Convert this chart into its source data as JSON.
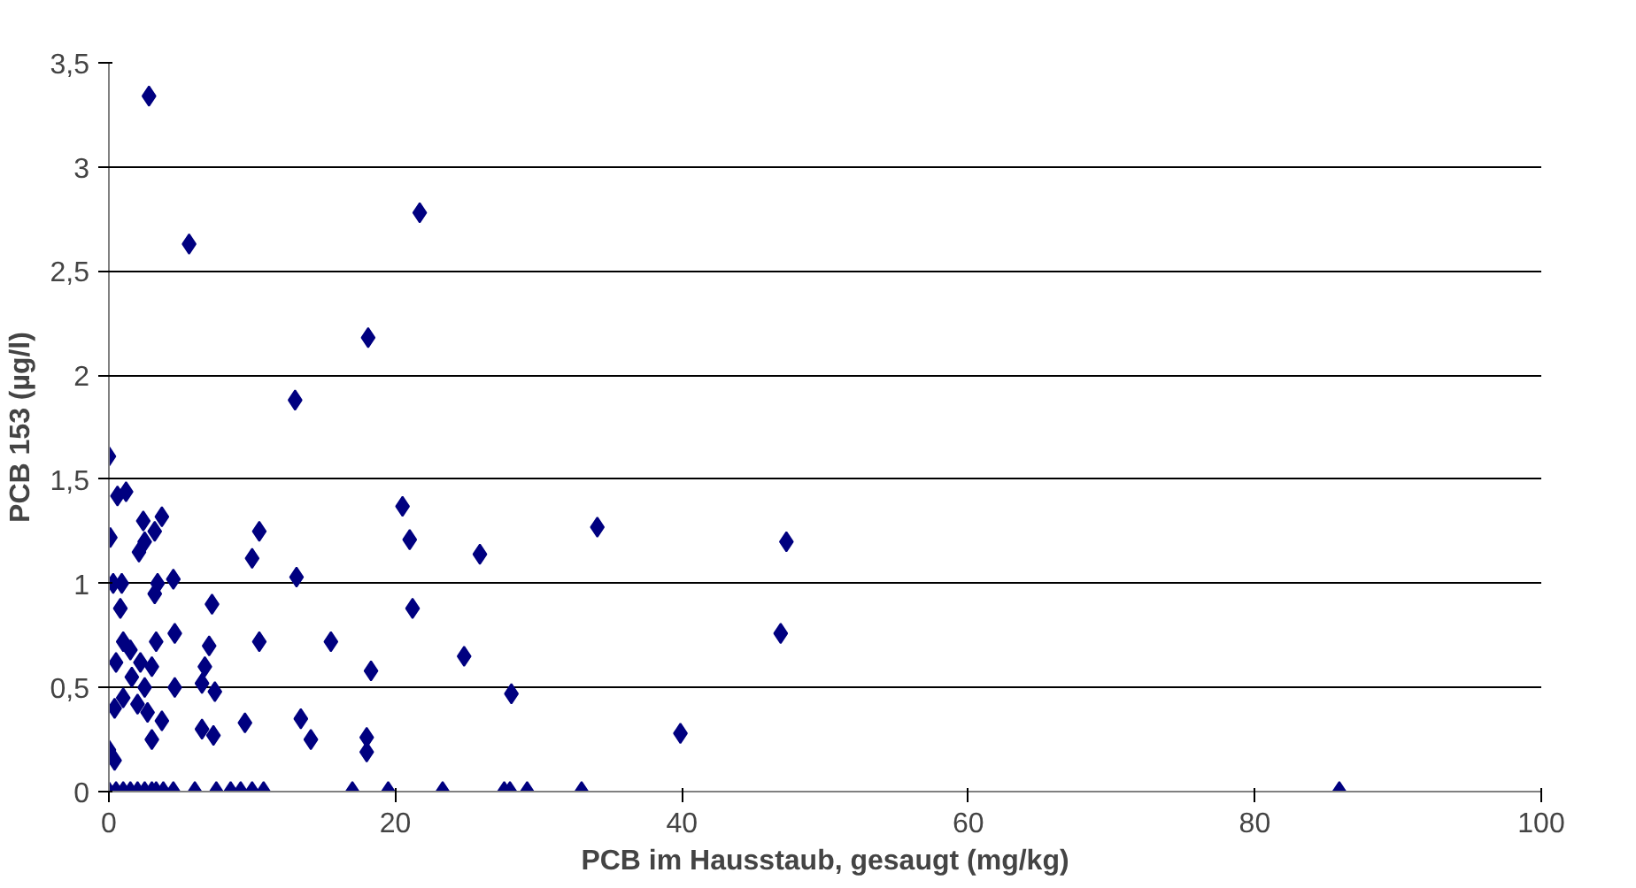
{
  "chart_data": {
    "type": "scatter",
    "xlabel": "PCB im Hausstaub, gesaugt (mg/kg)",
    "ylabel": "PCB 153 (µg/l)",
    "xlim": [
      0,
      100
    ],
    "xticks": [
      0,
      20,
      40,
      60,
      80,
      100
    ],
    "ylim": [
      0,
      3.5
    ],
    "yticks": [
      0,
      {
        "value": 0.5,
        "label": "0,5"
      },
      1,
      {
        "value": 1.5,
        "label": "1,5"
      },
      2,
      {
        "value": 2.5,
        "label": "2,5"
      },
      3,
      {
        "value": 3.5,
        "label": "3,5"
      }
    ],
    "grid": "y",
    "marker": "diamond",
    "series": [
      {
        "color": "#000080",
        "x": [
          2.8,
          5.6,
          21.7,
          18.1,
          13.0,
          0,
          0.1,
          0.6,
          1.2,
          0.3,
          0.9,
          2.4,
          2.1,
          2.5,
          3.2,
          3.7,
          3.4,
          3.2,
          4.5,
          10.0,
          10.5,
          13.1,
          20.5,
          21.0,
          21.2,
          25.9,
          34.1,
          47.3,
          46.9,
          15.5,
          10.5,
          7.2,
          18.3,
          24.8,
          28.1,
          39.9,
          13.4,
          14.1,
          9.5,
          18.0,
          18.0,
          6.7,
          7.0,
          6.5,
          7.4,
          6.5,
          7.3,
          4.6,
          3.3,
          3.0,
          2.5,
          1.5,
          1.0,
          0.5,
          0.4,
          0.0,
          0.4,
          1.6,
          2.2,
          2.0,
          2.7,
          3.0,
          3.7,
          4.6,
          1.0,
          0.8,
          0,
          0.5,
          1,
          1.5,
          2,
          2.5,
          3,
          3.3,
          3.8,
          4.5,
          6,
          7.5,
          8.5,
          9.2,
          10,
          10.8,
          17,
          19.5,
          23.3,
          27.6,
          28,
          29.2,
          33,
          85.9
        ],
        "values": [
          3.34,
          2.63,
          2.78,
          2.18,
          1.88,
          1.61,
          1.22,
          1.42,
          1.44,
          1.0,
          1.0,
          1.3,
          1.15,
          1.2,
          1.25,
          1.32,
          1.0,
          0.95,
          1.02,
          1.12,
          1.25,
          1.03,
          1.37,
          1.21,
          0.88,
          1.14,
          1.27,
          1.2,
          0.76,
          0.72,
          0.72,
          0.9,
          0.58,
          0.65,
          0.47,
          0.28,
          0.35,
          0.25,
          0.33,
          0.26,
          0.19,
          0.6,
          0.7,
          0.52,
          0.48,
          0.3,
          0.27,
          0.76,
          0.72,
          0.6,
          0.5,
          0.68,
          0.72,
          0.62,
          0.4,
          0.2,
          0.15,
          0.55,
          0.62,
          0.42,
          0.38,
          0.25,
          0.34,
          0.5,
          0.45,
          0.88,
          0,
          0,
          0,
          0,
          0,
          0,
          0,
          0,
          0,
          0,
          0,
          0,
          0,
          0,
          0,
          0,
          0,
          0,
          0,
          0,
          0,
          0,
          0,
          0
        ]
      }
    ]
  }
}
